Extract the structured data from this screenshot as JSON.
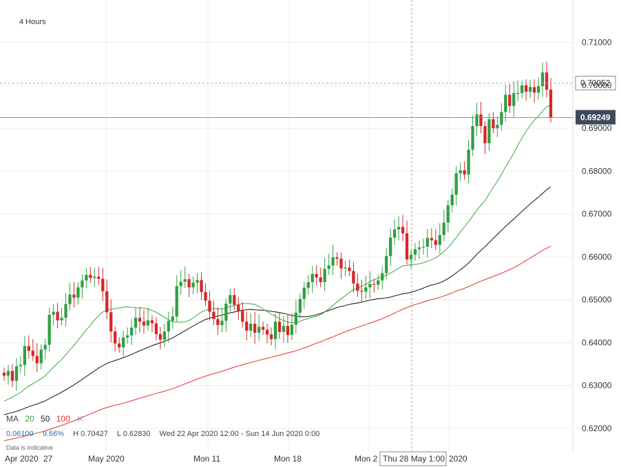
{
  "timeframe": "4 Hours",
  "legend": {
    "ma_label": "MA",
    "periods": [
      "20",
      "50",
      "100"
    ],
    "close_symbol": "✕"
  },
  "stats": {
    "change": "0.06100",
    "change_pct": "9.66%",
    "high": "H 0.70427",
    "low": "L 0.62830",
    "range": "Wed 22 Apr 2020 12:00 - Sun 14 Jun 2020 0:00"
  },
  "note": "Data is indicative",
  "crosshair_label": "Thu 28 May 1:00",
  "colors": {
    "up": "#2ea043",
    "down": "#d62728",
    "ma20": "#3aa63a",
    "ma50": "#222222",
    "ma100": "#e0312c",
    "price_tag": "#3d4a5c"
  },
  "chart_data": {
    "type": "candlestick",
    "y_ticks": [
      "0.71000",
      "0.70000",
      "0.69000",
      "0.68000",
      "0.67000",
      "0.66000",
      "0.65000",
      "0.64000",
      "0.63000",
      "0.62000"
    ],
    "ylim": [
      0.6147,
      0.7199
    ],
    "x_labels": [
      "Apr 2020",
      "27",
      "May 2020",
      "Mon 11",
      "Mon 18",
      "Mon 2",
      "2020"
    ],
    "hover_price": "0.70052",
    "last_price": "0.69249",
    "closes": [
      0.6323,
      0.6334,
      0.6311,
      0.6345,
      0.6348,
      0.6392,
      0.6381,
      0.6369,
      0.6352,
      0.6384,
      0.6395,
      0.6465,
      0.6472,
      0.6452,
      0.6458,
      0.649,
      0.6512,
      0.6505,
      0.6529,
      0.6545,
      0.6558,
      0.6551,
      0.6554,
      0.6549,
      0.652,
      0.6471,
      0.6426,
      0.6398,
      0.6389,
      0.6412,
      0.6417,
      0.6435,
      0.6458,
      0.6449,
      0.644,
      0.6452,
      0.6445,
      0.642,
      0.6407,
      0.6426,
      0.6451,
      0.6461,
      0.6532,
      0.6542,
      0.6548,
      0.6529,
      0.654,
      0.6546,
      0.6518,
      0.6498,
      0.6472,
      0.6455,
      0.6441,
      0.6451,
      0.6491,
      0.6511,
      0.6488,
      0.6474,
      0.6449,
      0.6428,
      0.6444,
      0.6423,
      0.6437,
      0.643,
      0.6419,
      0.6408,
      0.6449,
      0.6425,
      0.6439,
      0.6418,
      0.6442,
      0.647,
      0.6502,
      0.6528,
      0.6541,
      0.656,
      0.6552,
      0.6541,
      0.6572,
      0.658,
      0.6599,
      0.6596,
      0.6573,
      0.6575,
      0.6567,
      0.6538,
      0.6521,
      0.6519,
      0.6529,
      0.6537,
      0.6535,
      0.6545,
      0.6562,
      0.6602,
      0.6645,
      0.6664,
      0.667,
      0.6655,
      0.6594,
      0.6605,
      0.6618,
      0.6622,
      0.6624,
      0.6644,
      0.6639,
      0.6628,
      0.6651,
      0.668,
      0.672,
      0.6745,
      0.6795,
      0.6802,
      0.6792,
      0.685,
      0.6905,
      0.6932,
      0.6905,
      0.6865,
      0.6921,
      0.69,
      0.6908,
      0.6938,
      0.6978,
      0.6952,
      0.6982,
      0.6982,
      0.7,
      0.6985,
      0.6996,
      0.6983,
      0.6998,
      0.703,
      0.699,
      0.6925
    ]
  }
}
